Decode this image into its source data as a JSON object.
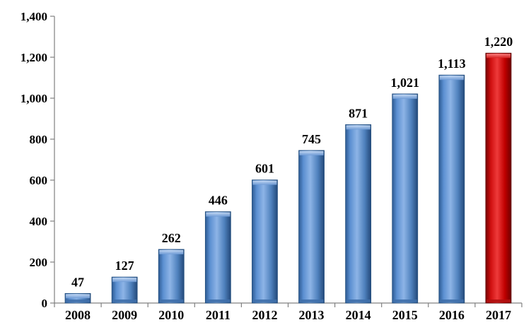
{
  "chart_data": {
    "type": "bar",
    "categories": [
      "2008",
      "2009",
      "2010",
      "2011",
      "2012",
      "2013",
      "2014",
      "2015",
      "2016",
      "2017"
    ],
    "values": [
      47,
      127,
      262,
      446,
      601,
      745,
      871,
      1021,
      1113,
      1220
    ],
    "data_labels": [
      "47",
      "127",
      "262",
      "446",
      "601",
      "745",
      "871",
      "1,021",
      "1,113",
      "1,220"
    ],
    "y_ticks": [
      0,
      200,
      400,
      600,
      800,
      1000,
      1200,
      1400
    ],
    "y_tick_labels": [
      "0",
      "200",
      "400",
      "600",
      "800",
      "1,000",
      "1,200",
      "1,400"
    ],
    "ylim": [
      0,
      1400
    ],
    "title": "",
    "xlabel": "",
    "ylabel": "",
    "grid": false,
    "legend": "none",
    "colors": {
      "bar": "#4f81bd",
      "highlight": "#c00000",
      "axis": "#808080"
    },
    "highlight_index": 9
  }
}
